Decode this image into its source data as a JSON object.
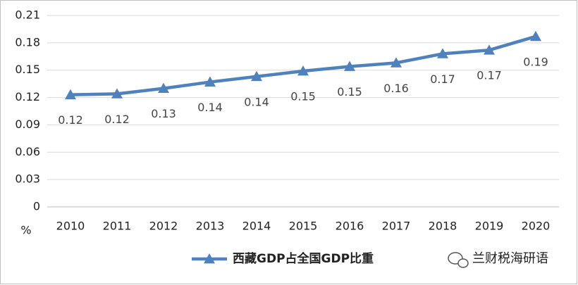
{
  "chart_data": {
    "type": "line",
    "categories": [
      "2010",
      "2011",
      "2012",
      "2013",
      "2014",
      "2015",
      "2016",
      "2017",
      "2018",
      "2019",
      "2020"
    ],
    "series": [
      {
        "name": "西藏GDP占全国GDP比重",
        "color": "#4f81bd",
        "values": [
          0.123,
          0.124,
          0.13,
          0.137,
          0.143,
          0.149,
          0.154,
          0.158,
          0.168,
          0.172,
          0.187
        ],
        "value_labels": [
          "0.12",
          "0.12",
          "0.13",
          "0.14",
          "0.14",
          "0.15",
          "0.15",
          "0.16",
          "0.17",
          "0.17",
          "0.19"
        ]
      }
    ],
    "y_label": "%",
    "ylim": [
      0,
      0.21
    ],
    "yticks": [
      0,
      0.03,
      0.06,
      0.09,
      0.12,
      0.15,
      0.18,
      0.21
    ],
    "grid": true,
    "legend": "bottom",
    "watermark": "兰财税海研语"
  }
}
